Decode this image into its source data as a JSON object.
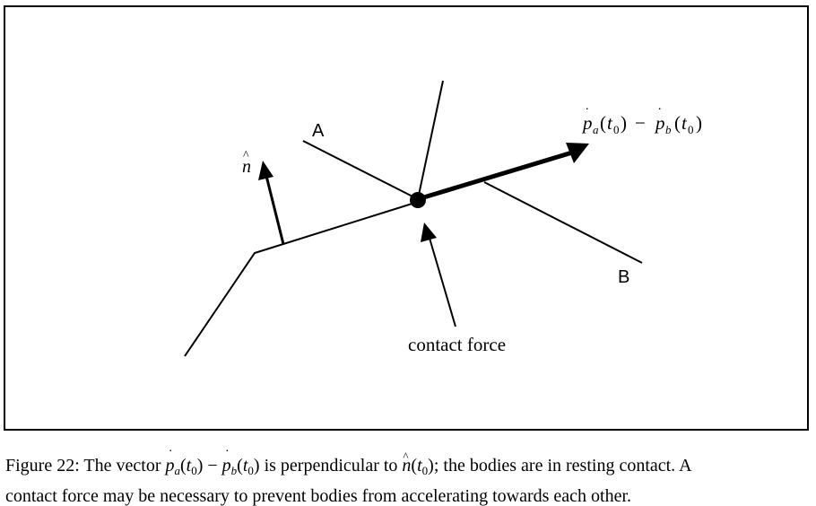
{
  "diagram": {
    "label_a": "A",
    "label_b": "B",
    "label_normal_symbol": "n",
    "label_contact_force": "contact force",
    "label_velocity": {
      "p_a": "p",
      "sub_a": "a",
      "t_a": "t",
      "sub_0_a": "0",
      "minus": "−",
      "p_b": "p",
      "sub_b": "b",
      "t_b": "t",
      "sub_0_b": "0"
    }
  },
  "caption": {
    "prefix": "Figure 22: The vector ",
    "pa": "p",
    "pa_sub": "a",
    "pa_arg_open": "(",
    "pa_t": "t",
    "pa_t_sub": "0",
    "pa_arg_close": ")",
    "minus": " − ",
    "pb": "p",
    "pb_sub": "b",
    "pb_arg_open": "(",
    "pb_t": "t",
    "pb_t_sub": "0",
    "pb_arg_close": ")",
    "middle": " is perpendicular to ",
    "n": "n",
    "n_arg_open": "(",
    "n_t": "t",
    "n_t_sub": "0",
    "n_arg_close": ")",
    "suffix_line1": "; the bodies are in resting contact. A",
    "line2": "contact force may be necessary to prevent bodies from accelerating towards each other."
  }
}
